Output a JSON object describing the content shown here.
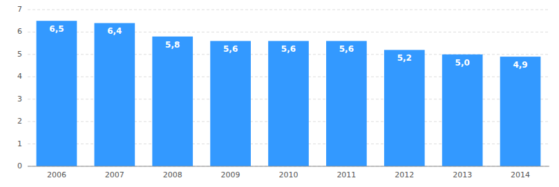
{
  "chart_data": {
    "type": "bar",
    "categories": [
      "2006",
      "2007",
      "2008",
      "2009",
      "2010",
      "2011",
      "2012",
      "2013",
      "2014"
    ],
    "values": [
      6.5,
      6.4,
      5.8,
      5.6,
      5.6,
      5.6,
      5.2,
      5.0,
      4.9
    ],
    "value_labels": [
      "6,5",
      "6,4",
      "5,8",
      "5,6",
      "5,6",
      "5,6",
      "5,2",
      "5,0",
      "4,9"
    ],
    "color": "#3399FF",
    "ylim": [
      0,
      7
    ],
    "yticks": [
      0,
      1,
      2,
      3,
      4,
      5,
      6,
      7
    ],
    "grid": true,
    "data_labels": true
  }
}
